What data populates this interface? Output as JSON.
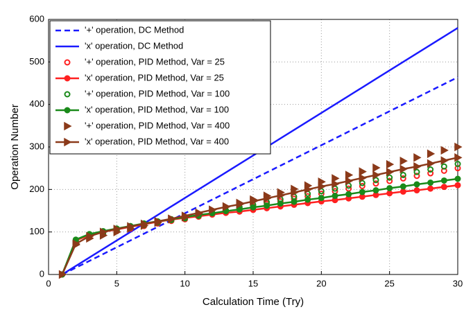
{
  "chart_data": {
    "type": "line",
    "xlabel": "Calculation Time (Try)",
    "ylabel": "Operation Number",
    "x": [
      1,
      2,
      3,
      4,
      5,
      6,
      7,
      8,
      9,
      10,
      11,
      12,
      13,
      14,
      15,
      16,
      17,
      18,
      19,
      20,
      21,
      22,
      23,
      24,
      25,
      26,
      27,
      28,
      29,
      30
    ],
    "xlim": [
      0,
      30
    ],
    "ylim": [
      0,
      600
    ],
    "xticks": [
      0,
      5,
      10,
      15,
      20,
      25,
      30
    ],
    "yticks": [
      0,
      100,
      200,
      300,
      400,
      500,
      600
    ],
    "grid": true,
    "legend": "upper left",
    "series": [
      {
        "name": "'+' operation, DC Method",
        "color": "#1a1aff",
        "linestyle": "dashed",
        "marker": "none",
        "markerfill": false,
        "values": [
          0,
          16,
          32,
          48,
          64,
          80,
          96,
          112,
          128,
          144,
          160,
          176,
          192,
          208,
          224,
          240,
          256,
          272,
          288,
          304,
          320,
          336,
          352,
          368,
          384,
          400,
          416,
          432,
          448,
          464
        ]
      },
      {
        "name": "'x' operation, DC Method",
        "color": "#1a1aff",
        "linestyle": "solid",
        "marker": "none",
        "markerfill": false,
        "values": [
          0,
          20,
          40,
          60,
          80,
          100,
          120,
          140,
          160,
          180,
          200,
          220,
          240,
          260,
          280,
          300,
          320,
          340,
          360,
          380,
          400,
          420,
          440,
          460,
          480,
          500,
          520,
          540,
          560,
          580
        ]
      },
      {
        "name": "'+' operation, PID Method, Var = 25",
        "color": "#ff2020",
        "linestyle": "none",
        "marker": "circle",
        "markerfill": false,
        "values": [
          0,
          75,
          88,
          95,
          102,
          108,
          114,
          120,
          126,
          130,
          136,
          142,
          148,
          154,
          160,
          166,
          172,
          178,
          184,
          190,
          196,
          202,
          208,
          214,
          220,
          226,
          232,
          238,
          244,
          250
        ]
      },
      {
        "name": "'x' operation, PID Method, Var = 25",
        "color": "#ff2020",
        "linestyle": "solid",
        "marker": "circle",
        "markerfill": true,
        "values": [
          0,
          80,
          93,
          100,
          106,
          112,
          118,
          124,
          129,
          133,
          137,
          141,
          145,
          148,
          152,
          156,
          160,
          164,
          168,
          172,
          175,
          179,
          183,
          187,
          191,
          195,
          198,
          202,
          206,
          210
        ]
      },
      {
        "name": "'+' operation, PID Method, Var = 100",
        "color": "#1a8a1a",
        "linestyle": "none",
        "marker": "circle",
        "markerfill": false,
        "values": [
          0,
          78,
          92,
          98,
          104,
          110,
          116,
          122,
          128,
          132,
          138,
          145,
          151,
          158,
          164,
          170,
          177,
          183,
          190,
          196,
          202,
          209,
          215,
          222,
          228,
          234,
          241,
          247,
          254,
          260
        ]
      },
      {
        "name": "'x' operation, PID Method, Var = 100",
        "color": "#1a8a1a",
        "linestyle": "solid",
        "marker": "circle",
        "markerfill": true,
        "values": [
          0,
          82,
          95,
          102,
          108,
          114,
          120,
          125,
          130,
          135,
          140,
          144,
          149,
          153,
          158,
          162,
          167,
          171,
          176,
          180,
          185,
          189,
          194,
          198,
          203,
          207,
          212,
          216,
          221,
          225
        ]
      },
      {
        "name": "'+' operation, PID Method, Var = 400",
        "color": "#8b3a1a",
        "linestyle": "none",
        "marker": "triangle",
        "markerfill": true,
        "values": [
          0,
          70,
          85,
          92,
          100,
          108,
          115,
          122,
          130,
          135,
          143,
          152,
          160,
          168,
          176,
          185,
          193,
          201,
          209,
          218,
          226,
          234,
          242,
          251,
          259,
          267,
          275,
          284,
          292,
          300
        ]
      },
      {
        "name": "'x' operation, PID Method, Var = 400",
        "color": "#8b3a1a",
        "linestyle": "solid",
        "marker": "triangle",
        "markerfill": true,
        "values": [
          0,
          72,
          90,
          100,
          107,
          113,
          119,
          125,
          131,
          138,
          145,
          152,
          159,
          165,
          172,
          179,
          186,
          193,
          200,
          207,
          213,
          220,
          227,
          234,
          241,
          248,
          254,
          261,
          268,
          275
        ]
      }
    ]
  }
}
